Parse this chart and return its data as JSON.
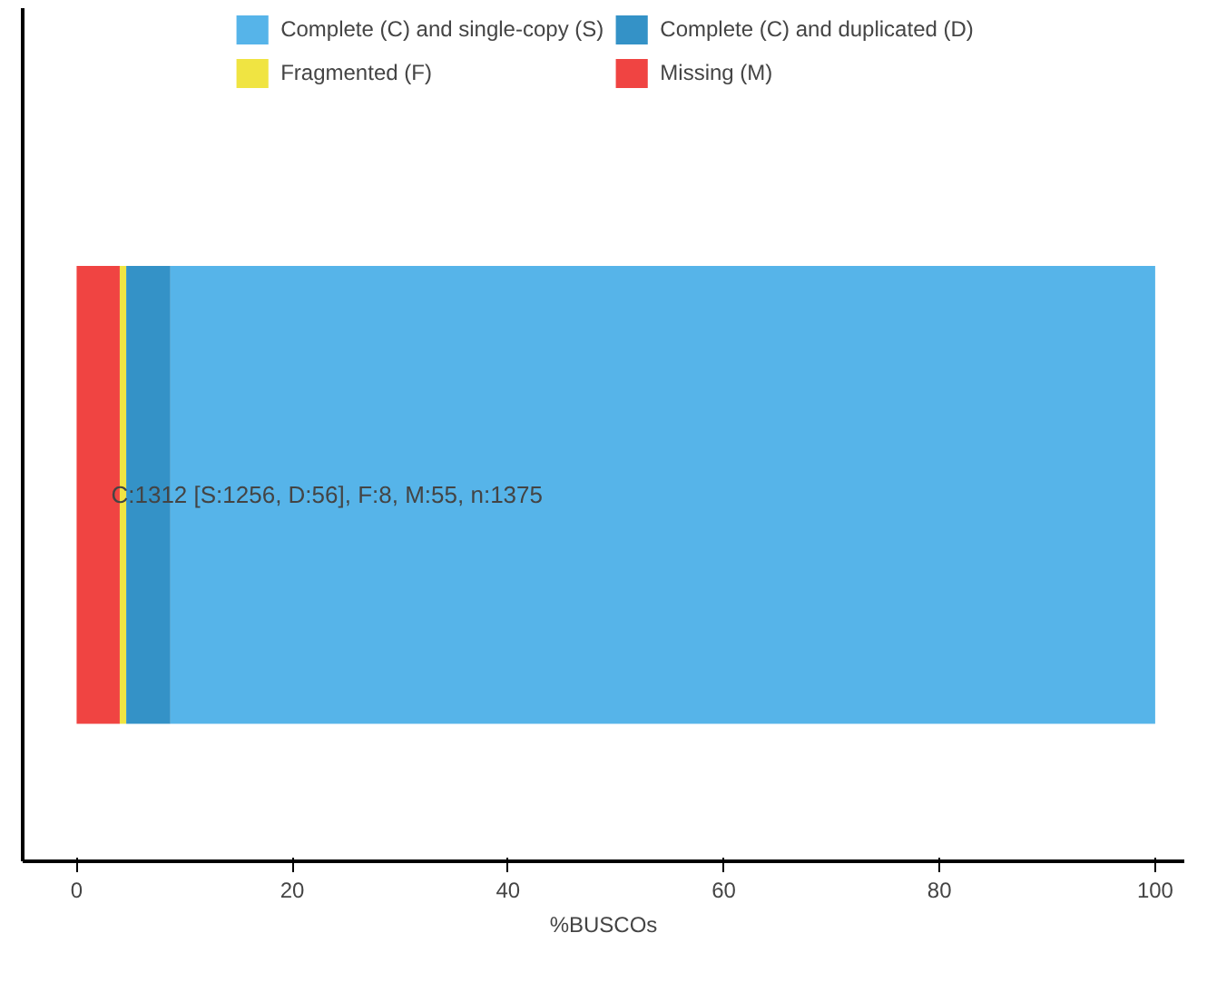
{
  "chart_data": {
    "type": "bar",
    "orientation": "horizontal",
    "stacked": true,
    "xlabel": "%BUSCOs",
    "categories": [
      null
    ],
    "series": [
      {
        "name": "Missing (M)",
        "color": "#f04442",
        "values": [
          4.0
        ]
      },
      {
        "name": "Fragmented (F)",
        "color": "#f0e442",
        "values": [
          0.6
        ]
      },
      {
        "name": "Complete (C) and duplicated (D)",
        "color": "#3492c7",
        "values": [
          4.1
        ]
      },
      {
        "name": "Complete (C) and single-copy (S)",
        "color": "#56b4e9",
        "values": [
          91.3
        ]
      }
    ],
    "xlim": [
      -5,
      102.7
    ],
    "xticks": [
      0,
      20,
      40,
      60,
      80,
      100
    ],
    "tick_labels": "x",
    "grid": false,
    "legend": "top",
    "annotations": [
      "C:1312 [S:1256, D:56], F:8, M:55, n:1375"
    ]
  }
}
